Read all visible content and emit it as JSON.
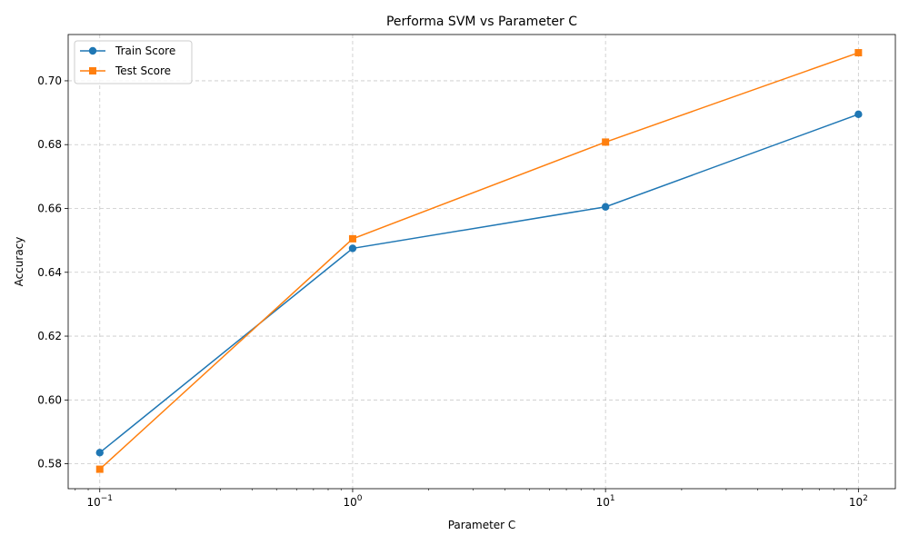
{
  "chart_data": {
    "type": "line",
    "title": "Performa SVM vs Parameter C",
    "xlabel": "Parameter C",
    "ylabel": "Accuracy",
    "xscale": "log",
    "x": [
      0.1,
      1,
      10,
      100
    ],
    "xlim": [
      0.075,
      140
    ],
    "ylim": [
      0.5722,
      0.7145
    ],
    "y_ticks": [
      0.58,
      0.6,
      0.62,
      0.64,
      0.66,
      0.68,
      0.7
    ],
    "y_tick_labels": [
      "0.58",
      "0.60",
      "0.62",
      "0.64",
      "0.66",
      "0.68",
      "0.70"
    ],
    "x_ticks": [
      0.1,
      1,
      10,
      100
    ],
    "x_tick_base": "10",
    "x_tick_exponents": [
      "−1",
      "0",
      "1",
      "2"
    ],
    "grid": true,
    "legend_position": "top-left",
    "series": [
      {
        "name": "Train Score",
        "color": "#1f77b4",
        "marker": "circle",
        "values": [
          0.5835,
          0.6475,
          0.6605,
          0.6895
        ]
      },
      {
        "name": "Test Score",
        "color": "#ff7f0e",
        "marker": "square",
        "values": [
          0.5783,
          0.6505,
          0.6808,
          0.7088
        ]
      }
    ]
  }
}
